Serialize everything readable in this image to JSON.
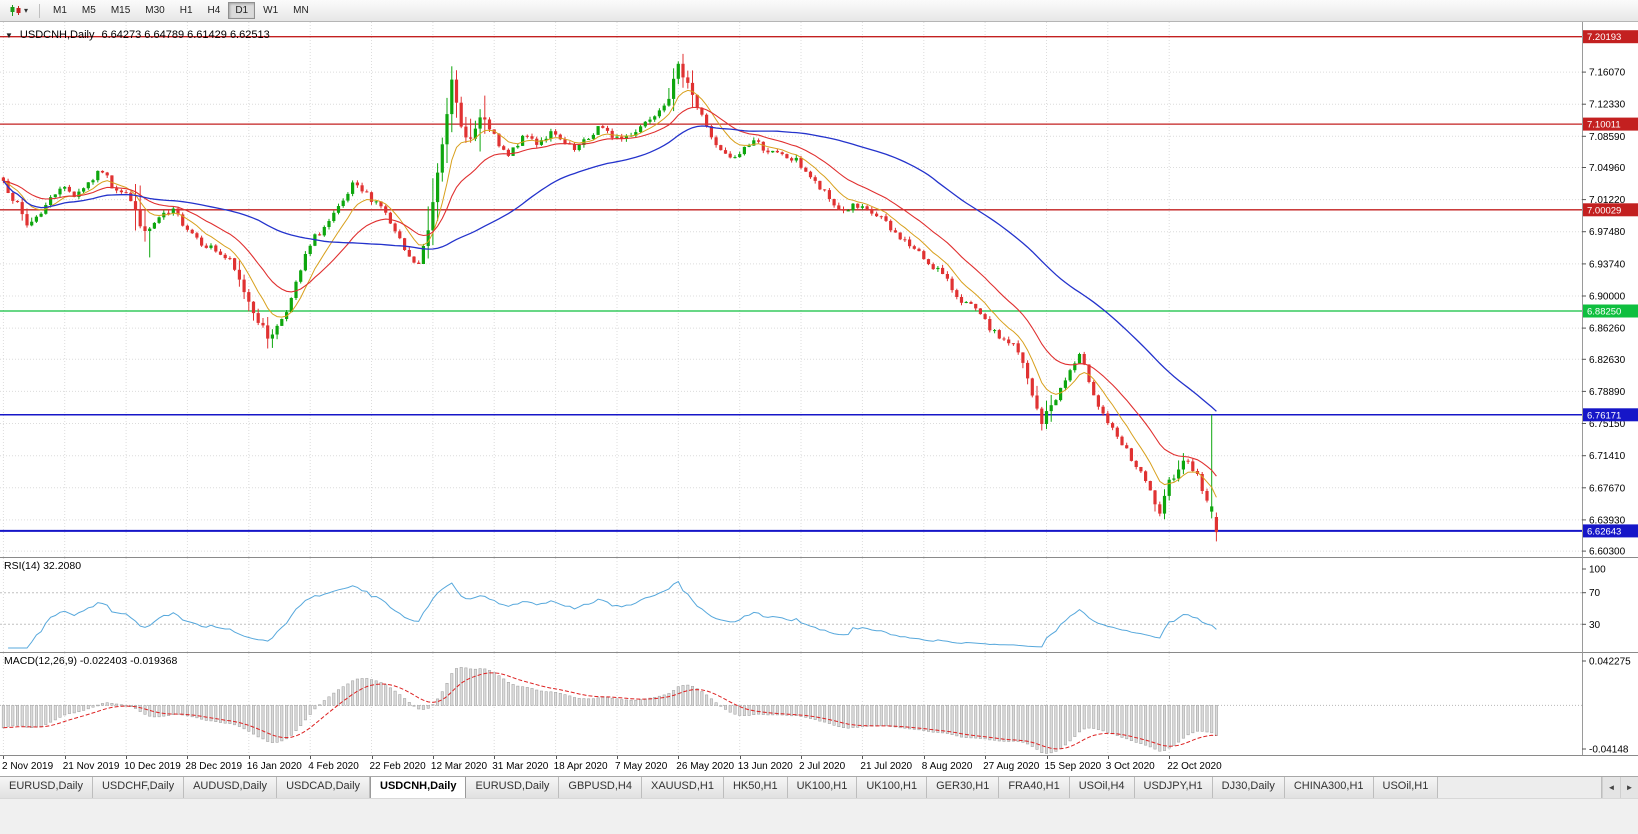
{
  "toolbar": {
    "chart_type_caret": "▾",
    "timeframes": [
      "M1",
      "M5",
      "M15",
      "M30",
      "H1",
      "H4",
      "D1",
      "W1",
      "MN"
    ],
    "active_timeframe": "D1"
  },
  "chart": {
    "header": {
      "collapse_icon": "▼",
      "title": "USDCNH,Daily",
      "ohlc": "6.64273  6.64789  6.61429  6.62513"
    }
  },
  "rsi_panel": {
    "label": "RSI(14) 32.2080"
  },
  "macd_panel": {
    "label": "MACD(12,26,9) -0.022403 -0.019368"
  },
  "tabs": {
    "scroll_left": "◄",
    "scroll_right": "►",
    "items": [
      {
        "label": "EURUSD,Daily",
        "active": false
      },
      {
        "label": "USDCHF,Daily",
        "active": false
      },
      {
        "label": "AUDUSD,Daily",
        "active": false
      },
      {
        "label": "USDCAD,Daily",
        "active": false
      },
      {
        "label": "USDCNH,Daily",
        "active": true
      },
      {
        "label": "EURUSD,Daily",
        "active": false
      },
      {
        "label": "GBPUSD,H4",
        "active": false
      },
      {
        "label": "XAUUSD,H1",
        "active": false
      },
      {
        "label": "HK50,H1",
        "active": false
      },
      {
        "label": "UK100,H1",
        "active": false
      },
      {
        "label": "UK100,H1",
        "active": false
      },
      {
        "label": "GER30,H1",
        "active": false
      },
      {
        "label": "FRA40,H1",
        "active": false
      },
      {
        "label": "USOil,H4",
        "active": false
      },
      {
        "label": "USDJPY,H1",
        "active": false
      },
      {
        "label": "DJ30,Daily",
        "active": false
      },
      {
        "label": "CHINA300,H1",
        "active": false
      },
      {
        "label": "USOil,H1",
        "active": false
      }
    ]
  },
  "chart_data": {
    "type": "candlestick",
    "symbol": "USDCNH",
    "timeframe": "Daily",
    "current_ohlc": {
      "open": 6.64273,
      "high": 6.64789,
      "low": 6.61429,
      "close": 6.62513
    },
    "y_range": {
      "top": 7.219,
      "bottom": 6.5961
    },
    "y_ticks": [
      "7.16070",
      "7.12330",
      "7.08590",
      "7.04960",
      "7.01220",
      "6.97480",
      "6.93740",
      "6.90000",
      "6.86260",
      "6.82630",
      "6.78890",
      "6.75150",
      "6.71410",
      "6.67670",
      "6.63930",
      "6.60300"
    ],
    "x_labels": [
      "2 Nov 2019",
      "21 Nov 2019",
      "10 Dec 2019",
      "28 Dec 2019",
      "16 Jan 2020",
      "4 Feb 2020",
      "22 Feb 2020",
      "12 Mar 2020",
      "31 Mar 2020",
      "18 Apr 2020",
      "7 May 2020",
      "26 May 2020",
      "13 Jun 2020",
      "2 Jul 2020",
      "21 Jul 2020",
      "8 Aug 2020",
      "27 Aug 2020",
      "15 Sep 2020",
      "3 Oct 2020",
      "22 Oct 2020"
    ],
    "label_every": 13,
    "candle_count": 258,
    "levels": [
      {
        "price": 7.20193,
        "color": "#c32020",
        "width": 1.3,
        "label": "7.20193"
      },
      {
        "price": 7.10011,
        "color": "#c32020",
        "width": 1.3,
        "label": "7.10011"
      },
      {
        "price": 7.00029,
        "color": "#c32020",
        "width": 1.3,
        "label": "7.00029"
      },
      {
        "price": 6.8825,
        "color": "#0fbf3f",
        "width": 1.3,
        "label": "6.88250"
      },
      {
        "price": 6.76171,
        "color": "#1616c8",
        "width": 1.5,
        "label": "6.76171"
      },
      {
        "price": 6.62643,
        "color": "#1616c8",
        "width": 2,
        "label": "6.62643"
      }
    ],
    "colors": {
      "up": "#0ea60e",
      "down": "#e03232",
      "ma_fast": "#d8a01d",
      "ma_mid": "#e03030",
      "ma_slow": "#2433cc",
      "rsi": "#57a8dc",
      "rsi_level": "#c0c0c0",
      "macd_bar": "#dadada",
      "macd_bar_edge": "#a6a6a6",
      "macd_signal": "#dd2222",
      "grid": "#dcdcdc",
      "axis_border": "#9a9a9a"
    },
    "close_waypoints": [
      [
        0,
        7.034
      ],
      [
        3,
        7.005
      ],
      [
        5,
        6.982
      ],
      [
        8,
        6.998
      ],
      [
        12,
        7.028
      ],
      [
        15,
        7.018
      ],
      [
        18,
        7.032
      ],
      [
        21,
        7.046
      ],
      [
        23,
        7.028
      ],
      [
        26,
        7.022
      ],
      [
        28,
        6.998
      ],
      [
        30,
        6.972
      ],
      [
        33,
        6.99
      ],
      [
        36,
        6.998
      ],
      [
        39,
        6.98
      ],
      [
        42,
        6.963
      ],
      [
        45,
        6.953
      ],
      [
        48,
        6.94
      ],
      [
        51,
        6.906
      ],
      [
        54,
        6.872
      ],
      [
        56,
        6.852
      ],
      [
        58,
        6.864
      ],
      [
        61,
        6.896
      ],
      [
        64,
        6.946
      ],
      [
        66,
        6.968
      ],
      [
        69,
        6.986
      ],
      [
        72,
        7.008
      ],
      [
        74,
        7.028
      ],
      [
        77,
        7.018
      ],
      [
        80,
        7.006
      ],
      [
        83,
        6.973
      ],
      [
        86,
        6.943
      ],
      [
        88,
        6.936
      ],
      [
        90,
        6.976
      ],
      [
        92,
        7.046
      ],
      [
        94,
        7.116
      ],
      [
        95,
        7.148
      ],
      [
        97,
        7.096
      ],
      [
        99,
        7.082
      ],
      [
        101,
        7.106
      ],
      [
        103,
        7.096
      ],
      [
        105,
        7.073
      ],
      [
        107,
        7.062
      ],
      [
        109,
        7.078
      ],
      [
        111,
        7.086
      ],
      [
        113,
        7.079
      ],
      [
        116,
        7.089
      ],
      [
        119,
        7.076
      ],
      [
        121,
        7.069
      ],
      [
        124,
        7.083
      ],
      [
        126,
        7.097
      ],
      [
        128,
        7.089
      ],
      [
        131,
        7.083
      ],
      [
        134,
        7.093
      ],
      [
        136,
        7.103
      ],
      [
        139,
        7.119
      ],
      [
        141,
        7.133
      ],
      [
        143,
        7.166
      ],
      [
        145,
        7.151
      ],
      [
        147,
        7.119
      ],
      [
        149,
        7.099
      ],
      [
        151,
        7.073
      ],
      [
        153,
        7.063
      ],
      [
        155,
        7.059
      ],
      [
        157,
        7.073
      ],
      [
        159,
        7.081
      ],
      [
        161,
        7.073
      ],
      [
        163,
        7.066
      ],
      [
        166,
        7.061
      ],
      [
        168,
        7.057
      ],
      [
        170,
        7.046
      ],
      [
        172,
        7.031
      ],
      [
        174,
        7.019
      ],
      [
        176,
        7.006
      ],
      [
        178,
        6.999
      ],
      [
        180,
        7.004
      ],
      [
        182,
        7.0
      ],
      [
        184,
        6.996
      ],
      [
        186,
        6.991
      ],
      [
        188,
        6.976
      ],
      [
        190,
        6.969
      ],
      [
        192,
        6.959
      ],
      [
        194,
        6.949
      ],
      [
        196,
        6.939
      ],
      [
        198,
        6.931
      ],
      [
        200,
        6.916
      ],
      [
        202,
        6.901
      ],
      [
        204,
        6.891
      ],
      [
        206,
        6.883
      ],
      [
        208,
        6.869
      ],
      [
        210,
        6.856
      ],
      [
        212,
        6.849
      ],
      [
        214,
        6.843
      ],
      [
        216,
        6.821
      ],
      [
        218,
        6.783
      ],
      [
        220,
        6.753
      ],
      [
        222,
        6.773
      ],
      [
        224,
        6.791
      ],
      [
        226,
        6.813
      ],
      [
        228,
        6.829
      ],
      [
        230,
        6.803
      ],
      [
        232,
        6.773
      ],
      [
        234,
        6.753
      ],
      [
        236,
        6.733
      ],
      [
        238,
        6.719
      ],
      [
        240,
        6.701
      ],
      [
        242,
        6.683
      ],
      [
        244,
        6.659
      ],
      [
        245,
        6.643
      ],
      [
        247,
        6.683
      ],
      [
        249,
        6.701
      ],
      [
        251,
        6.711
      ],
      [
        253,
        6.689
      ],
      [
        255,
        6.661
      ],
      [
        257,
        6.625
      ]
    ],
    "volatility_zones": [
      [
        3,
        6,
        0.006
      ],
      [
        28,
        31,
        0.03
      ],
      [
        50,
        58,
        0.008
      ],
      [
        90,
        102,
        0.025
      ],
      [
        141,
        146,
        0.012
      ],
      [
        216,
        222,
        0.01
      ],
      [
        244,
        250,
        0.008
      ]
    ],
    "last_candles": [
      {
        "o": 6.649,
        "h": 6.762,
        "l": 6.641,
        "c": 6.655
      },
      {
        "o": 6.64273,
        "h": 6.64789,
        "l": 6.61429,
        "c": 6.62513
      }
    ],
    "indicators": {
      "ma_fast_period": 8,
      "ma_mid_period": 20,
      "ma_slow_period": 55,
      "rsi": {
        "period": 14,
        "current": 32.208,
        "levels": [
          70,
          30
        ],
        "scale_ticks": [
          "100",
          "70",
          "30"
        ]
      },
      "macd": {
        "fast": 12,
        "slow": 26,
        "signal": 9,
        "current": [
          -0.022403,
          -0.019368
        ],
        "scale_top": 0.042275,
        "scale_bottom": -0.04148,
        "scale_ticks": [
          "0.042275",
          "-0.04148"
        ]
      }
    }
  }
}
